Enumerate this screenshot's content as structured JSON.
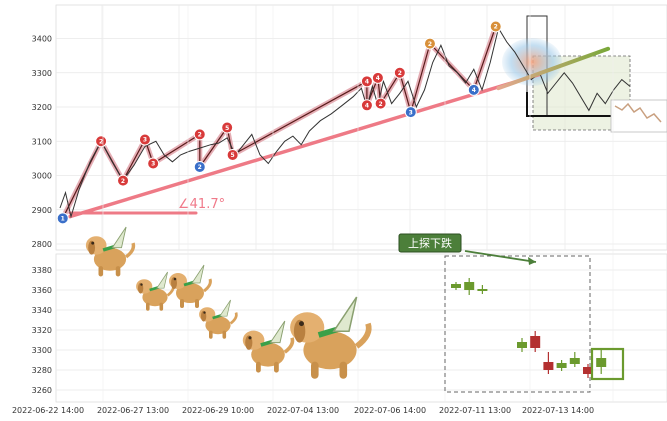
{
  "chart_data": [
    {
      "type": "line",
      "title": "",
      "xlabel": "",
      "ylabel": "",
      "ylim": [
        2790,
        3460
      ],
      "y_ticks": [
        "3400",
        "3300",
        "3200",
        "3100",
        "3000",
        "2900",
        "2800"
      ],
      "grid": true,
      "angle_annotation": "∠41.7°",
      "price_series": [
        {
          "t": 0,
          "v": 2905
        },
        {
          "t": 2,
          "v": 2950
        },
        {
          "t": 4,
          "v": 2880
        },
        {
          "t": 7,
          "v": 2960
        },
        {
          "t": 11,
          "v": 3040
        },
        {
          "t": 15,
          "v": 3100
        },
        {
          "t": 19,
          "v": 3040
        },
        {
          "t": 23,
          "v": 2985
        },
        {
          "t": 27,
          "v": 3030
        },
        {
          "t": 31,
          "v": 3085
        },
        {
          "t": 35,
          "v": 3100
        },
        {
          "t": 38,
          "v": 3060
        },
        {
          "t": 41,
          "v": 3040
        },
        {
          "t": 44,
          "v": 3060
        },
        {
          "t": 47,
          "v": 3070
        },
        {
          "t": 51,
          "v": 3080
        },
        {
          "t": 55,
          "v": 3090
        },
        {
          "t": 58,
          "v": 3095
        },
        {
          "t": 61,
          "v": 3110
        },
        {
          "t": 64,
          "v": 3060
        },
        {
          "t": 67,
          "v": 3090
        },
        {
          "t": 70,
          "v": 3120
        },
        {
          "t": 73,
          "v": 3060
        },
        {
          "t": 76,
          "v": 3035
        },
        {
          "t": 79,
          "v": 3070
        },
        {
          "t": 82,
          "v": 3100
        },
        {
          "t": 85,
          "v": 3115
        },
        {
          "t": 88,
          "v": 3090
        },
        {
          "t": 91,
          "v": 3130
        },
        {
          "t": 95,
          "v": 3160
        },
        {
          "t": 99,
          "v": 3180
        },
        {
          "t": 103,
          "v": 3205
        },
        {
          "t": 107,
          "v": 3230
        },
        {
          "t": 110,
          "v": 3255
        },
        {
          "t": 112,
          "v": 3200
        },
        {
          "t": 114,
          "v": 3260
        },
        {
          "t": 116,
          "v": 3205
        },
        {
          "t": 118,
          "v": 3275
        },
        {
          "t": 121,
          "v": 3210
        },
        {
          "t": 124,
          "v": 3240
        },
        {
          "t": 127,
          "v": 3275
        },
        {
          "t": 130,
          "v": 3200
        },
        {
          "t": 133,
          "v": 3250
        },
        {
          "t": 136,
          "v": 3330
        },
        {
          "t": 139,
          "v": 3380
        },
        {
          "t": 142,
          "v": 3320
        },
        {
          "t": 145,
          "v": 3300
        },
        {
          "t": 148,
          "v": 3270
        },
        {
          "t": 151,
          "v": 3310
        },
        {
          "t": 154,
          "v": 3250
        },
        {
          "t": 157,
          "v": 3330
        },
        {
          "t": 160,
          "v": 3430
        },
        {
          "t": 163,
          "v": 3390
        },
        {
          "t": 166,
          "v": 3360
        },
        {
          "t": 169,
          "v": 3320
        },
        {
          "t": 172,
          "v": 3280
        },
        {
          "t": 175,
          "v": 3300
        },
        {
          "t": 178,
          "v": 3240
        },
        {
          "t": 181,
          "v": 3270
        },
        {
          "t": 184,
          "v": 3300
        },
        {
          "t": 187,
          "v": 3270
        },
        {
          "t": 190,
          "v": 3230
        },
        {
          "t": 193,
          "v": 3190
        },
        {
          "t": 196,
          "v": 3240
        },
        {
          "t": 199,
          "v": 3210
        },
        {
          "t": 202,
          "v": 3250
        },
        {
          "t": 205,
          "v": 3280
        },
        {
          "t": 208,
          "v": 3260
        }
      ],
      "trendline": {
        "from": {
          "t": 0,
          "v": 2880
        },
        "to": {
          "t": 175,
          "v": 3295
        }
      },
      "forecast_arrow": {
        "from": {
          "t": 160,
          "v": 3255
        },
        "to": {
          "t": 200,
          "v": 3370
        }
      },
      "wave_markers": [
        {
          "t": 1,
          "v": 2875,
          "label": "1",
          "color": "#3a6fc9"
        },
        {
          "t": 15,
          "v": 3100,
          "label": "2",
          "color": "#d83a3a"
        },
        {
          "t": 23,
          "v": 2985,
          "label": "2",
          "color": "#d83a3a"
        },
        {
          "t": 31,
          "v": 3105,
          "label": "3",
          "color": "#d83a3a"
        },
        {
          "t": 34,
          "v": 3035,
          "label": "3",
          "color": "#d83a3a"
        },
        {
          "t": 51,
          "v": 3120,
          "label": "2",
          "color": "#d83a3a"
        },
        {
          "t": 51,
          "v": 3025,
          "label": "2",
          "color": "#3a6fc9"
        },
        {
          "t": 61,
          "v": 3140,
          "label": "5",
          "color": "#d83a3a"
        },
        {
          "t": 63,
          "v": 3060,
          "label": "5",
          "color": "#d83a3a"
        },
        {
          "t": 112,
          "v": 3275,
          "label": "4",
          "color": "#d83a3a"
        },
        {
          "t": 112,
          "v": 3205,
          "label": "4",
          "color": "#d83a3a"
        },
        {
          "t": 116,
          "v": 3285,
          "label": "4",
          "color": "#d83a3a"
        },
        {
          "t": 117,
          "v": 3210,
          "label": "2",
          "color": "#d83a3a"
        },
        {
          "t": 124,
          "v": 3300,
          "label": "2",
          "color": "#d83a3a"
        },
        {
          "t": 128,
          "v": 3185,
          "label": "3",
          "color": "#3a6fc9"
        },
        {
          "t": 135,
          "v": 3385,
          "label": "2",
          "color": "#d8903a"
        },
        {
          "t": 151,
          "v": 3250,
          "label": "4",
          "color": "#3a6fc9"
        },
        {
          "t": 159,
          "v": 3435,
          "label": "2",
          "color": "#d8903a"
        }
      ]
    },
    {
      "type": "candlestick",
      "title": "",
      "xlabel": "",
      "ylabel": "",
      "ylim": [
        3254,
        3388
      ],
      "y_ticks": [
        "3380",
        "3360",
        "3340",
        "3320",
        "3300",
        "3280",
        "3260"
      ],
      "x_ticks": [
        "2022-06-22 14:00",
        "2022-06-27 13:00",
        "2022-06-29 10:00",
        "2022-07-04 13:00",
        "2022-07-06 14:00",
        "2022-07-11 13:00",
        "2022-07-13 14:00"
      ],
      "callout": "上探下跌",
      "candles": [
        {
          "i": 0,
          "open": 3362,
          "close": 3366,
          "high": 3368,
          "low": 3360,
          "color": "#6b9a2e"
        },
        {
          "i": 1,
          "open": 3360,
          "close": 3368,
          "high": 3372,
          "low": 3355,
          "color": "#6b9a2e"
        },
        {
          "i": 2,
          "open": 3360,
          "close": 3361,
          "high": 3365,
          "low": 3356,
          "color": "#6b9a2e"
        },
        {
          "i": 5,
          "open": 3302,
          "close": 3308,
          "high": 3312,
          "low": 3298,
          "color": "#6b9a2e"
        },
        {
          "i": 6,
          "open": 3314,
          "close": 3302,
          "high": 3319,
          "low": 3298,
          "color": "#b33030"
        },
        {
          "i": 7,
          "open": 3288,
          "close": 3280,
          "high": 3298,
          "low": 3276,
          "color": "#b33030"
        },
        {
          "i": 8,
          "open": 3282,
          "close": 3287,
          "high": 3290,
          "low": 3279,
          "color": "#6b9a2e"
        },
        {
          "i": 9,
          "open": 3286,
          "close": 3292,
          "high": 3298,
          "low": 3283,
          "color": "#6b9a2e"
        },
        {
          "i": 10,
          "open": 3283,
          "close": 3276,
          "high": 3286,
          "low": 3272,
          "color": "#b33030"
        },
        {
          "i": 11,
          "open": 3283,
          "close": 3292,
          "high": 3300,
          "low": 3276,
          "color": "#6b9a2e"
        }
      ]
    }
  ]
}
